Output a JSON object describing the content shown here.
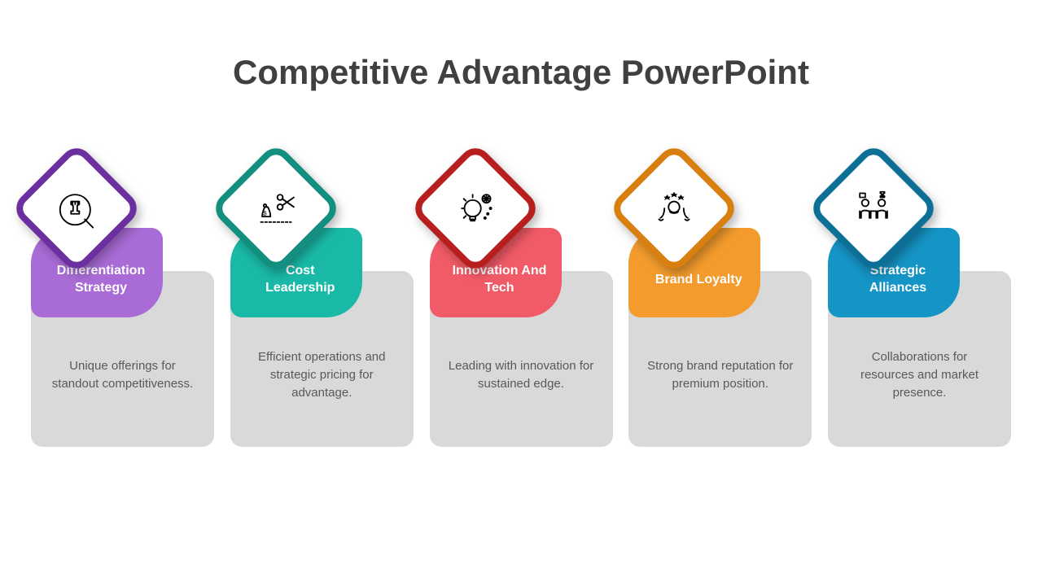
{
  "type": "infographic",
  "title": "Competitive Advantage PowerPoint",
  "title_color": "#404040",
  "title_fontsize": 42,
  "background_color": "#ffffff",
  "card_body_color": "#d9d9d9",
  "body_text_color": "#595959",
  "header_text_color": "#ffffff",
  "cards": [
    {
      "id": "differentiation",
      "header": "Differentiation Strategy",
      "body": "Unique offerings for standout competitiveness.",
      "color_light": "#a96cd6",
      "color_dark": "#6b2fa0",
      "icon": "chess"
    },
    {
      "id": "cost",
      "header": "Cost Leadership",
      "body": "Efficient operations and strategic pricing for advantage.",
      "color_light": "#1ab9a7",
      "color_dark": "#138f80",
      "icon": "cut-cost"
    },
    {
      "id": "innovation",
      "header": "Innovation And Tech",
      "body": "Leading with innovation for sustained edge.",
      "color_light": "#f15b67",
      "color_dark": "#b71f1f",
      "icon": "bulb"
    },
    {
      "id": "brand",
      "header": "Brand Loyalty",
      "body": "Strong brand reputation for premium position.",
      "color_light": "#f39b2d",
      "color_dark": "#d87f0f",
      "icon": "loyalty"
    },
    {
      "id": "alliances",
      "header": "Strategic Alliances",
      "body": "Collaborations for resources and market presence.",
      "color_light": "#1594c6",
      "color_dark": "#0d6f96",
      "icon": "alliance"
    }
  ]
}
